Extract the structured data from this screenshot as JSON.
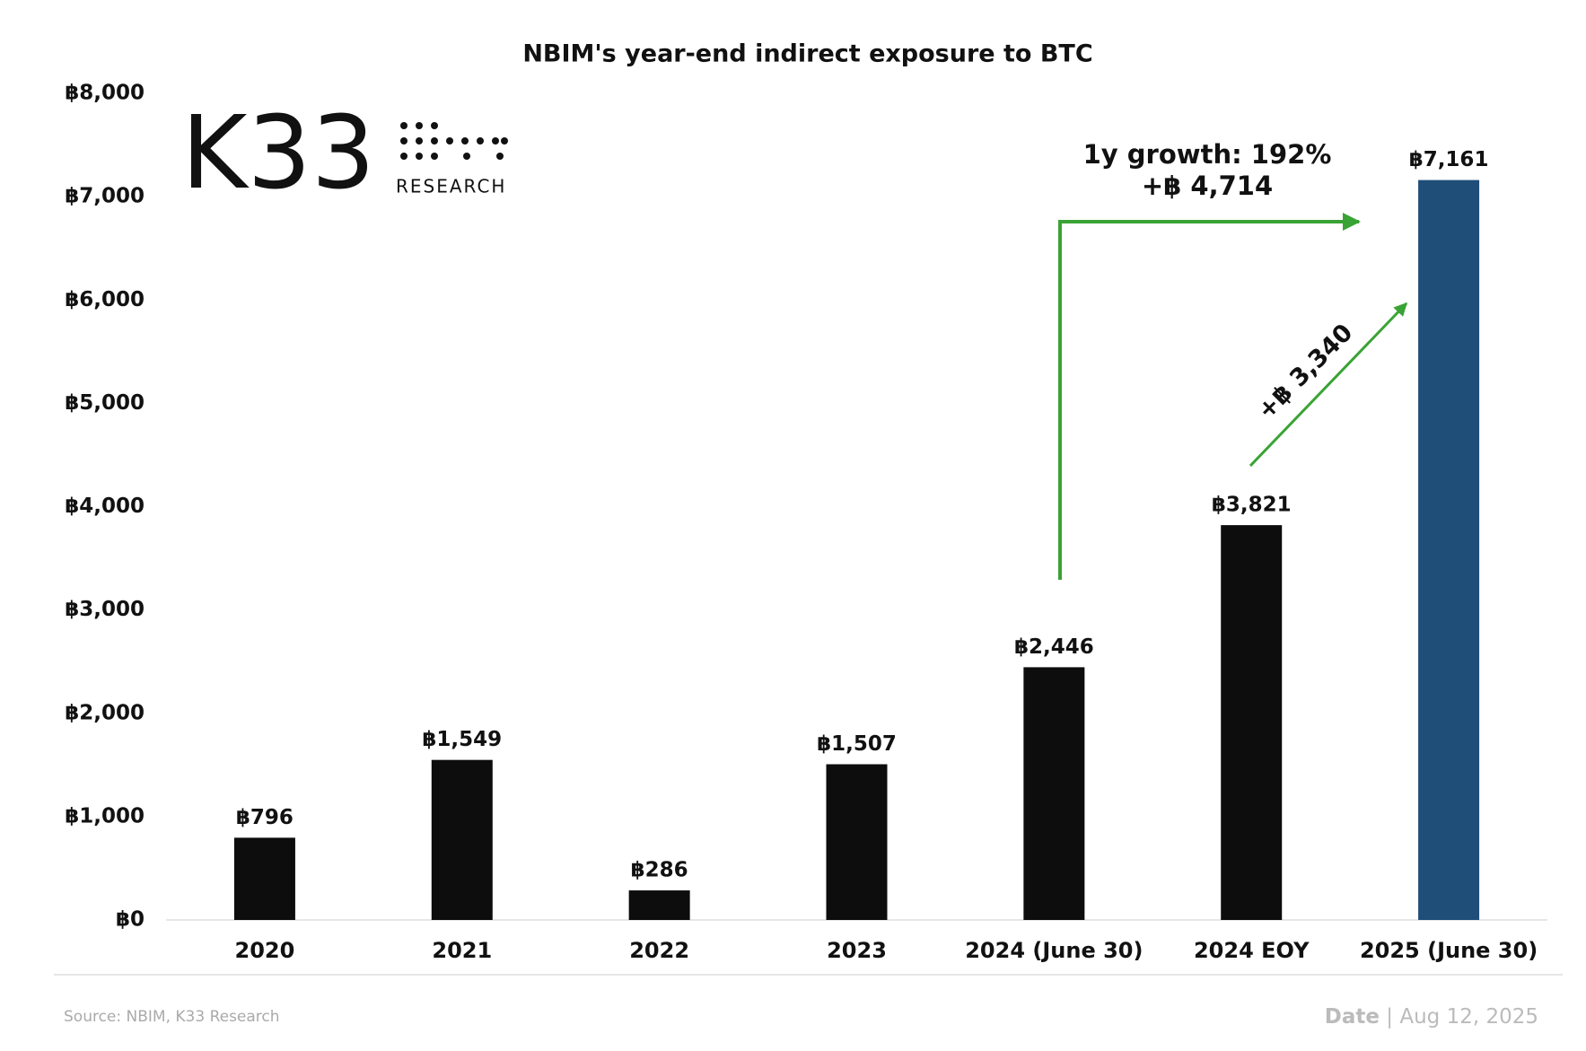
{
  "chart_data": {
    "type": "bar",
    "title": "NBIM's year-end indirect exposure to BTC",
    "categories": [
      "2020",
      "2021",
      "2022",
      "2023",
      "2024 (June 30)",
      "2024 EOY",
      "2025 (June 30)"
    ],
    "values": [
      796,
      1549,
      286,
      1507,
      2446,
      3821,
      7161
    ],
    "value_labels": [
      "฿796",
      "฿1,549",
      "฿286",
      "฿1,507",
      "฿2,446",
      "฿3,821",
      "฿7,161"
    ],
    "colors": [
      "#0d0d0d",
      "#0d0d0d",
      "#0d0d0d",
      "#0d0d0d",
      "#0d0d0d",
      "#0d0d0d",
      "#1f4e79"
    ],
    "ylim": [
      0,
      8000
    ],
    "yticks": [
      {
        "value": 0,
        "label": "฿0"
      },
      {
        "value": 1000,
        "label": "฿1,000"
      },
      {
        "value": 2000,
        "label": "฿2,000"
      },
      {
        "value": 3000,
        "label": "฿3,000"
      },
      {
        "value": 4000,
        "label": "฿4,000"
      },
      {
        "value": 5000,
        "label": "฿5,000"
      },
      {
        "value": 6000,
        "label": "฿6,000"
      },
      {
        "value": 7000,
        "label": "฿7,000"
      },
      {
        "value": 8000,
        "label": "฿8,000"
      }
    ],
    "grid": false,
    "annotations": [
      "1y growth: 192%",
      "+฿ 4,714",
      "+฿ 3,340"
    ]
  },
  "logo": {
    "mark": "K33",
    "subtitle": "RESEARCH"
  },
  "footer": {
    "source": "Source:  NBIM, K33 Research",
    "date_label": "Date",
    "separator": "|",
    "date": "Aug 12, 2025"
  }
}
